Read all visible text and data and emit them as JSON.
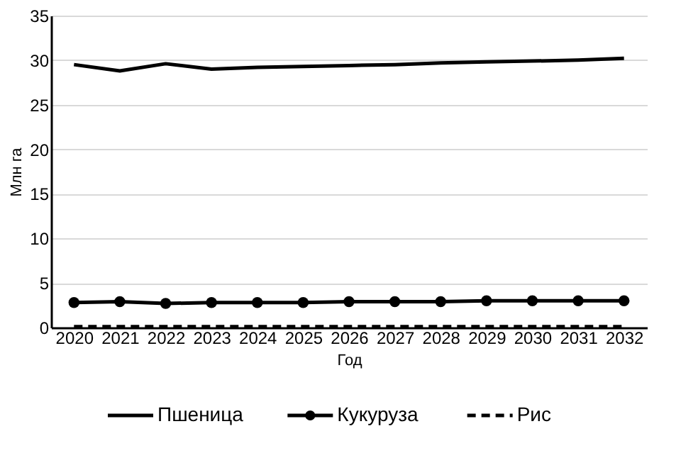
{
  "chart_data": {
    "type": "line",
    "xlabel": "Год",
    "ylabel": "Млн га",
    "categories": [
      "2020",
      "2021",
      "2022",
      "2023",
      "2024",
      "2025",
      "2026",
      "2027",
      "2028",
      "2029",
      "2030",
      "2031",
      "2032"
    ],
    "series": [
      {
        "name": "Пшеница",
        "color": "#000000",
        "marker": "none",
        "line_style": "solid",
        "values": [
          29.5,
          28.8,
          29.6,
          29.0,
          29.2,
          29.3,
          29.4,
          29.5,
          29.7,
          29.8,
          29.9,
          30.0,
          30.2
        ]
      },
      {
        "name": "Кукуруза",
        "color": "#000000",
        "marker": "circle",
        "line_style": "solid",
        "values": [
          2.8,
          2.9,
          2.7,
          2.8,
          2.8,
          2.8,
          2.9,
          2.9,
          2.9,
          3.0,
          3.0,
          3.0,
          3.0
        ]
      },
      {
        "name": "Рис",
        "color": "#000000",
        "marker": "none",
        "line_style": "dashed",
        "values": [
          0.1,
          0.1,
          0.1,
          0.1,
          0.1,
          0.1,
          0.1,
          0.1,
          0.1,
          0.1,
          0.1,
          0.1,
          0.1
        ]
      }
    ],
    "ylim": [
      0,
      35
    ],
    "yticks": [
      0,
      5,
      10,
      15,
      20,
      25,
      30,
      35
    ],
    "grid": "y",
    "legend": "bottom"
  }
}
